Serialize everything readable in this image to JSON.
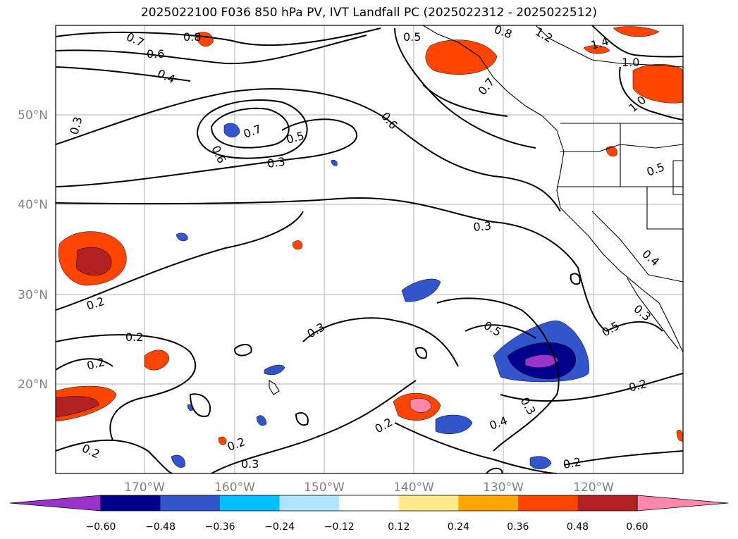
{
  "title": "2025022100 F036 850 hPa PV, IVT Landfall PC (2025022312 - 2025022512)",
  "lat_ticks": [
    "50°N",
    "40°N",
    "30°N",
    "20°N"
  ],
  "lon_ticks": [
    "170°W",
    "160°W",
    "150°W",
    "140°W",
    "130°W",
    "120°W"
  ],
  "contour_labels": [
    "0.8",
    "0.7",
    "0.6",
    "0.4",
    "0.3",
    "0.5",
    "0.8",
    "1.2",
    "1.4",
    "1.0",
    "1.0",
    "0.7",
    "0.6",
    "0.7",
    "0.5",
    "0.3",
    "0.6",
    "0.5",
    "0.3",
    "0.4",
    "0.2",
    "0.2",
    "0.2",
    "0.3",
    "0.5",
    "0.5",
    "0.3",
    "0.4",
    "0.2",
    "0.2",
    "0.3",
    "0.2",
    "0.2",
    "0.3",
    "0.2"
  ],
  "colorbar": {
    "colors": [
      "#9933cc",
      "#00008b",
      "#3355cc",
      "#00bfff",
      "#aee4ff",
      "#ffffff",
      "#ffe98a",
      "#ffa500",
      "#ff4500",
      "#b22222",
      "#ff88aa"
    ],
    "labels": [
      "−0.60",
      "−0.48",
      "−0.36",
      "−0.24",
      "−0.12",
      "0.12",
      "0.24",
      "0.36",
      "0.48",
      "0.60"
    ]
  }
}
